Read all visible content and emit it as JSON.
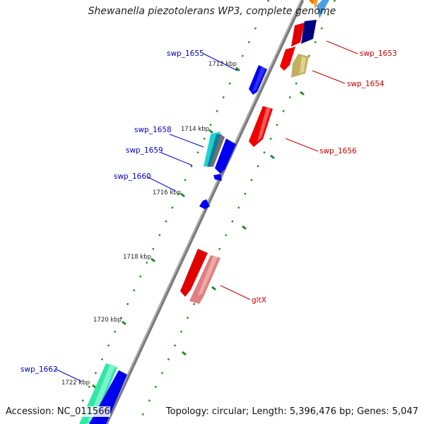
{
  "title": "Shewanella piezotolerans WP3, complete genome",
  "accession": "Accession: NC_011566",
  "summary": "Topology: circular; Length: 5,396,476 bp; Genes: 5,047",
  "colors": {
    "backbone": "#808080",
    "minus_label": "#0000cc",
    "plus_label": "#cc0000",
    "tick": "#228b22"
  },
  "kbp_ticks": [
    "1712 kbp",
    "1714 kbp",
    "1716 kbp",
    "1718 kbp",
    "1720 kbp",
    "1722 kbp"
  ],
  "genes": {
    "swp_1653": "swp_1653",
    "swp_1654": "swp_1654",
    "swp_1655": "swp_1655",
    "swp_1656": "swp_1656",
    "swp_1658": "swp_1658",
    "swp_1659": "swp_1659",
    "swp_1660": "swp_1660",
    "gltX": "gltX",
    "swp_1662": "swp_1662"
  }
}
